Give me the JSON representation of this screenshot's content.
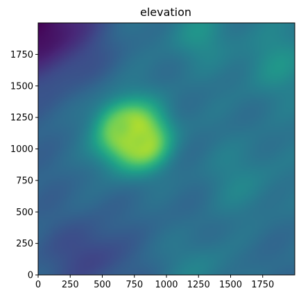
{
  "chart_data": {
    "type": "heatmap",
    "title": "elevation",
    "xlabel": "",
    "ylabel": "",
    "xlim": [
      0,
      2000
    ],
    "ylim": [
      2000,
      0
    ],
    "x_ticks": [
      0,
      250,
      500,
      750,
      1000,
      1250,
      1500,
      1750
    ],
    "y_ticks": [
      0,
      250,
      500,
      750,
      1000,
      1250,
      1500,
      1750
    ],
    "colormap": "viridis",
    "grid": false,
    "colorbar": false,
    "value_range": [
      0,
      1
    ],
    "field": {
      "background": 0.35,
      "gradients": [
        {
          "direction": "top-left",
          "value": 0.05
        },
        {
          "direction": "top-right",
          "value": 0.45
        },
        {
          "direction": "bottom-left",
          "value": 0.25
        }
      ],
      "peaks": [
        {
          "x": 730,
          "y": 890,
          "value": 1.0,
          "spread": 260
        },
        {
          "x": 650,
          "y": 820,
          "value": 0.8,
          "spread": 140
        },
        {
          "x": 820,
          "y": 950,
          "value": 0.85,
          "spread": 150
        },
        {
          "x": 1850,
          "y": 320,
          "value": 0.5,
          "spread": 250
        },
        {
          "x": 1250,
          "y": 100,
          "value": 0.5,
          "spread": 220
        },
        {
          "x": 1600,
          "y": 1250,
          "value": 0.45,
          "spread": 300
        },
        {
          "x": 1250,
          "y": 1950,
          "value": 0.45,
          "spread": 260
        }
      ],
      "valleys": [
        {
          "x": 0,
          "y": 0,
          "value": 0.0,
          "spread": 450
        },
        {
          "x": 400,
          "y": 1850,
          "value": 0.2,
          "spread": 260
        }
      ]
    }
  }
}
